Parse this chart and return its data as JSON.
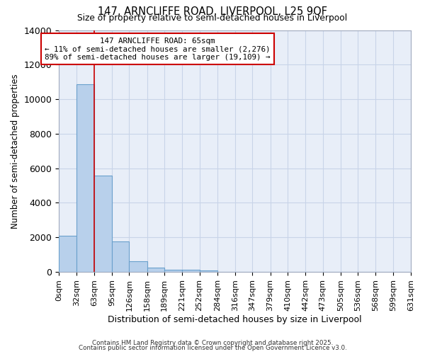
{
  "title1": "147, ARNCLIFFE ROAD, LIVERPOOL, L25 9QF",
  "title2": "Size of property relative to semi-detached houses in Liverpool",
  "xlabel": "Distribution of semi-detached houses by size in Liverpool",
  "ylabel": "Number of semi-detached properties",
  "annotation_title": "147 ARNCLIFFE ROAD: 65sqm",
  "annotation_line2": "← 11% of semi-detached houses are smaller (2,276)",
  "annotation_line3": "89% of semi-detached houses are larger (19,109) →",
  "property_size": 65,
  "bin_edges": [
    0,
    32,
    63,
    95,
    126,
    158,
    189,
    221,
    252,
    284,
    316,
    347,
    379,
    410,
    442,
    473,
    505,
    536,
    568,
    599,
    631
  ],
  "bin_counts": [
    2076,
    10850,
    5580,
    1750,
    630,
    270,
    145,
    120,
    100,
    0,
    0,
    0,
    0,
    0,
    0,
    0,
    0,
    0,
    0,
    0
  ],
  "bar_color": "#b8d0eb",
  "bar_edge_color": "#6aa0cc",
  "vline_color": "#cc0000",
  "vline_x": 63,
  "grid_color": "#c8d4e8",
  "plot_bg_color": "#e8eef8",
  "fig_bg_color": "#ffffff",
  "ylim": [
    0,
    14000
  ],
  "yticks": [
    0,
    2000,
    4000,
    6000,
    8000,
    10000,
    12000,
    14000
  ],
  "annotation_box_color": "#ffffff",
  "annotation_border_color": "#cc0000",
  "footer1": "Contains HM Land Registry data © Crown copyright and database right 2025.",
  "footer2": "Contains public sector information licensed under the Open Government Licence v3.0."
}
